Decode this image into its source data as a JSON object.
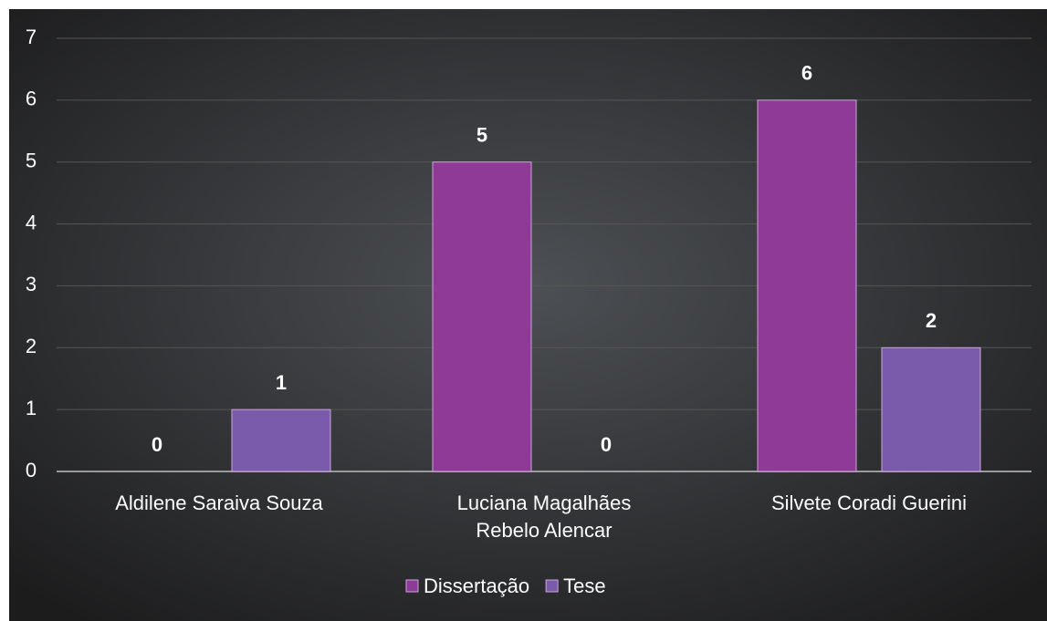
{
  "chart_data": {
    "type": "bar",
    "categories": [
      "Aldilene Saraiva Souza",
      "Luciana Magalhães Rebelo Alencar",
      "Silvete Coradi Guerini"
    ],
    "series": [
      {
        "name": "Dissertação",
        "color": "#8e3a96",
        "values": [
          0,
          5,
          6
        ]
      },
      {
        "name": "Tese",
        "color": "#7a5aaa",
        "values": [
          1,
          0,
          2
        ]
      }
    ],
    "ylim": [
      0,
      7
    ],
    "yticks": [
      0,
      1,
      2,
      3,
      4,
      5,
      6,
      7
    ],
    "grid": true,
    "legend": "bottom"
  }
}
